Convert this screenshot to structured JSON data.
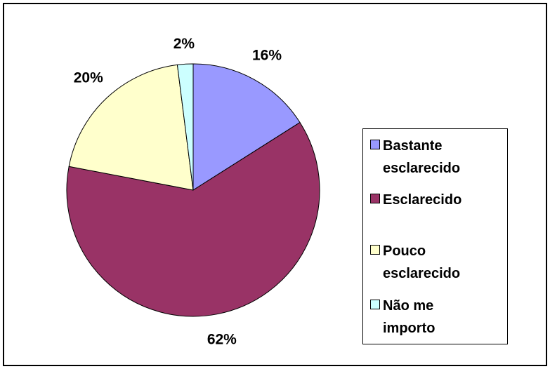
{
  "chart_data": {
    "type": "pie",
    "categories": [
      "Bastante esclarecido",
      "Esclarecido",
      "Pouco esclarecido",
      "Não me importo"
    ],
    "values": [
      16,
      62,
      20,
      2
    ],
    "value_labels": [
      "16%",
      "62%",
      "20%",
      "2%"
    ],
    "colors": [
      "#9999ff",
      "#993366",
      "#ffffcc",
      "#ccffff"
    ],
    "legend": "right"
  }
}
